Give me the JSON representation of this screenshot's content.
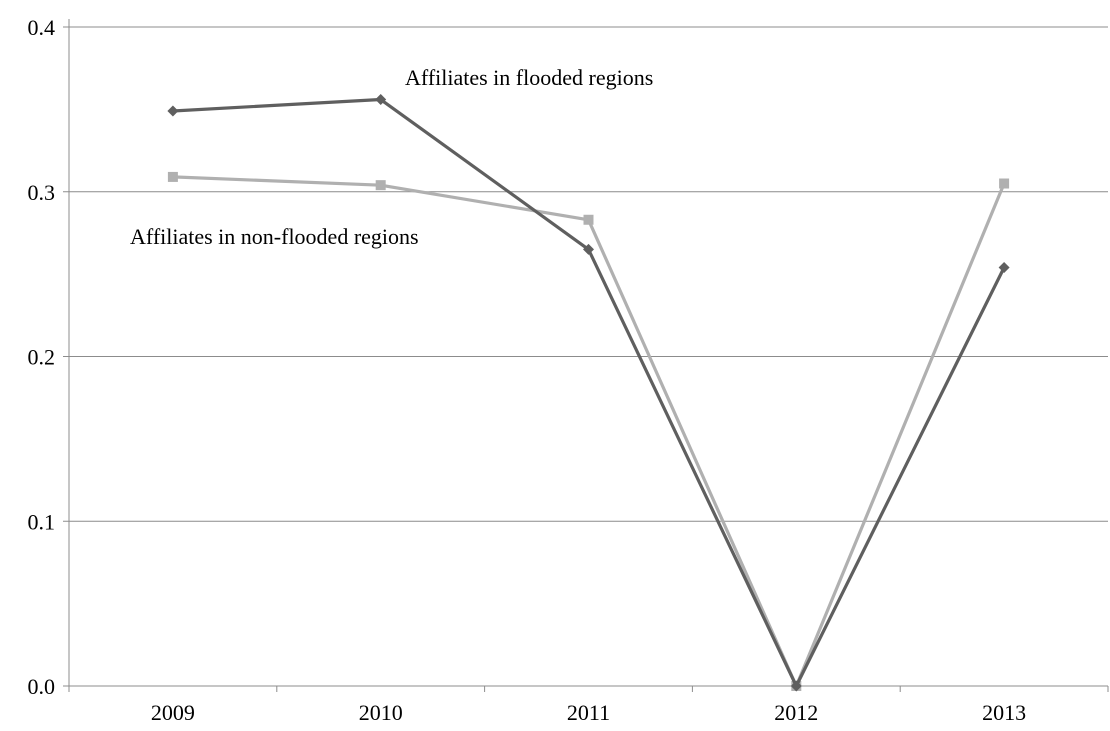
{
  "chart_data": {
    "type": "line",
    "title": "",
    "xlabel": "",
    "ylabel": "",
    "categories": [
      "2009",
      "2010",
      "2011",
      "2012",
      "2013"
    ],
    "ylim": [
      0.0,
      0.4
    ],
    "yticks": [
      "0.0",
      "0.1",
      "0.2",
      "0.3",
      "0.4"
    ],
    "grid": "horizontal",
    "legend": "none",
    "series": [
      {
        "name": "Affiliates in flooded regions",
        "values": [
          0.349,
          0.356,
          0.265,
          0.0,
          0.254
        ],
        "color": "#5f5f5f",
        "marker": "diamond"
      },
      {
        "name": "Affiliates in non-flooded regions",
        "values": [
          0.309,
          0.304,
          0.283,
          0.0,
          0.305
        ],
        "color": "#b0b0b0",
        "marker": "square"
      }
    ],
    "annotations": [
      {
        "text": "Affiliates in flooded regions",
        "series": 0
      },
      {
        "text": "Affiliates in non-flooded regions",
        "series": 1
      }
    ]
  }
}
